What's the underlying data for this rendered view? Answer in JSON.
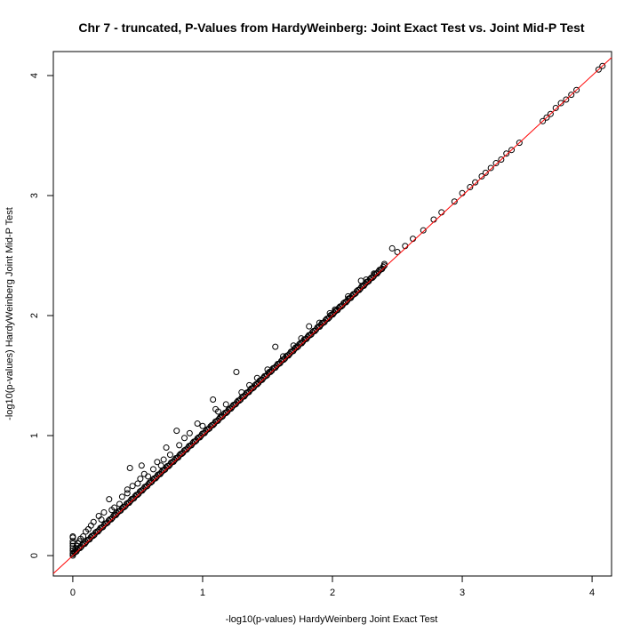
{
  "chart_data": {
    "type": "scatter",
    "title": "Chr 7 - truncated, P-Values from HardyWeinberg: Joint Exact Test vs. Joint Mid-P Test",
    "xlabel": "-log10(p-values) HardyWeinberg Joint Exact Test",
    "ylabel": "-log10(p-values) HardyWeinberg Joint Mid-P Test",
    "xlim": [
      -0.15,
      4.15
    ],
    "ylim": [
      -0.17,
      4.2
    ],
    "xticks": [
      "0",
      "1",
      "2",
      "3",
      "4"
    ],
    "yticks": [
      "0",
      "1",
      "2",
      "3",
      "4"
    ],
    "grid": false,
    "legend": "none",
    "reference_line": {
      "slope": 1,
      "intercept": 0,
      "color": "#ff0000"
    },
    "point_color": "#000000",
    "dense_band": {
      "from": 0.0,
      "to": 2.4,
      "offset": 0.012
    },
    "points": [
      [
        0.0,
        0.16
      ],
      [
        0.0,
        0.15
      ],
      [
        0.0,
        0.12
      ],
      [
        0.0,
        0.1
      ],
      [
        0.0,
        0.08
      ],
      [
        0.0,
        0.06
      ],
      [
        0.0,
        0.04
      ],
      [
        0.0,
        0.02
      ],
      [
        0.0,
        0.0
      ],
      [
        0.02,
        0.06
      ],
      [
        0.03,
        0.08
      ],
      [
        0.04,
        0.1
      ],
      [
        0.05,
        0.12
      ],
      [
        0.06,
        0.14
      ],
      [
        0.08,
        0.16
      ],
      [
        0.1,
        0.2
      ],
      [
        0.12,
        0.22
      ],
      [
        0.14,
        0.25
      ],
      [
        0.16,
        0.28
      ],
      [
        0.2,
        0.33
      ],
      [
        0.22,
        0.3
      ],
      [
        0.24,
        0.36
      ],
      [
        0.28,
        0.47
      ],
      [
        0.3,
        0.38
      ],
      [
        0.32,
        0.4
      ],
      [
        0.36,
        0.43
      ],
      [
        0.38,
        0.49
      ],
      [
        0.42,
        0.52
      ],
      [
        0.42,
        0.55
      ],
      [
        0.44,
        0.73
      ],
      [
        0.46,
        0.58
      ],
      [
        0.5,
        0.6
      ],
      [
        0.52,
        0.64
      ],
      [
        0.53,
        0.75
      ],
      [
        0.55,
        0.68
      ],
      [
        0.58,
        0.66
      ],
      [
        0.62,
        0.72
      ],
      [
        0.65,
        0.78
      ],
      [
        0.68,
        0.75
      ],
      [
        0.7,
        0.8
      ],
      [
        0.72,
        0.9
      ],
      [
        0.75,
        0.84
      ],
      [
        0.8,
        1.04
      ],
      [
        0.82,
        0.92
      ],
      [
        0.86,
        0.98
      ],
      [
        0.9,
        1.02
      ],
      [
        0.96,
        1.1
      ],
      [
        1.0,
        1.08
      ],
      [
        1.08,
        1.3
      ],
      [
        1.1,
        1.22
      ],
      [
        1.12,
        1.2
      ],
      [
        1.18,
        1.26
      ],
      [
        1.26,
        1.53
      ],
      [
        1.3,
        1.36
      ],
      [
        1.36,
        1.42
      ],
      [
        1.42,
        1.48
      ],
      [
        1.5,
        1.55
      ],
      [
        1.56,
        1.74
      ],
      [
        1.62,
        1.66
      ],
      [
        1.7,
        1.75
      ],
      [
        1.76,
        1.81
      ],
      [
        1.82,
        1.91
      ],
      [
        1.9,
        1.94
      ],
      [
        1.98,
        2.02
      ],
      [
        2.02,
        2.05
      ],
      [
        2.12,
        2.16
      ],
      [
        2.22,
        2.29
      ],
      [
        2.26,
        2.3
      ],
      [
        2.32,
        2.35
      ],
      [
        2.4,
        2.43
      ],
      [
        2.46,
        2.56
      ],
      [
        2.5,
        2.53
      ],
      [
        2.56,
        2.58
      ],
      [
        2.62,
        2.64
      ],
      [
        2.7,
        2.71
      ],
      [
        2.78,
        2.8
      ],
      [
        2.84,
        2.86
      ],
      [
        2.94,
        2.95
      ],
      [
        3.0,
        3.02
      ],
      [
        3.06,
        3.07
      ],
      [
        3.1,
        3.11
      ],
      [
        3.15,
        3.16
      ],
      [
        3.18,
        3.19
      ],
      [
        3.22,
        3.23
      ],
      [
        3.26,
        3.27
      ],
      [
        3.3,
        3.3
      ],
      [
        3.34,
        3.35
      ],
      [
        3.38,
        3.38
      ],
      [
        3.44,
        3.44
      ],
      [
        3.62,
        3.62
      ],
      [
        3.65,
        3.65
      ],
      [
        3.68,
        3.68
      ],
      [
        3.72,
        3.73
      ],
      [
        3.76,
        3.77
      ],
      [
        3.8,
        3.8
      ],
      [
        3.84,
        3.84
      ],
      [
        3.88,
        3.88
      ],
      [
        4.05,
        4.05
      ],
      [
        4.08,
        4.08
      ]
    ]
  }
}
